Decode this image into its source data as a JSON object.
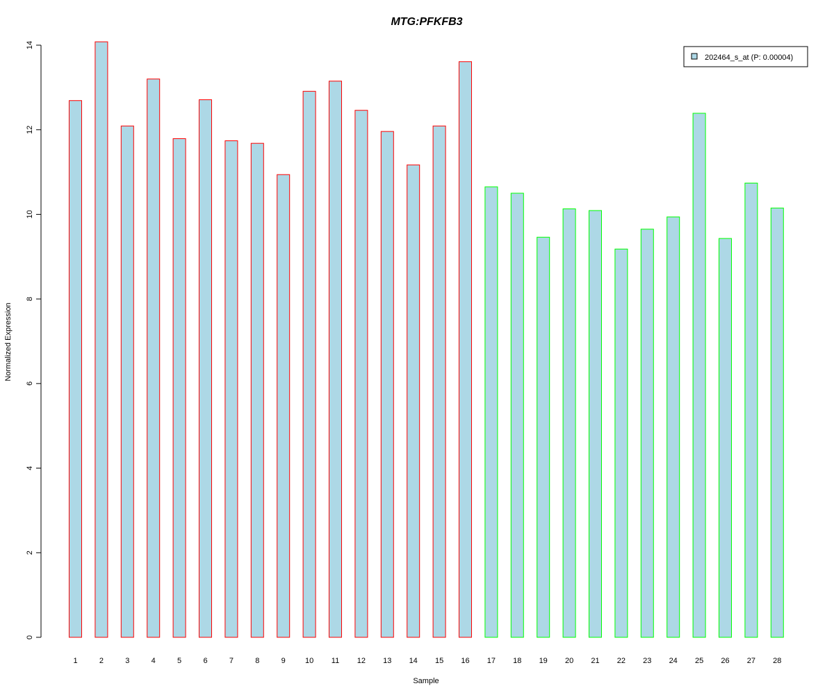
{
  "chart_data": {
    "type": "bar",
    "title": "MTG:PFKFB3",
    "title_color": "#0000CC",
    "xlabel": "Sample",
    "ylabel": "Normalized Expression",
    "ylim": [
      0,
      14
    ],
    "yticks": [
      0,
      2,
      4,
      6,
      8,
      10,
      12,
      14
    ],
    "grid": false,
    "legend_position": "top-right",
    "legend": [
      {
        "label": "202464_s_at (P: 0.00004)",
        "fill": "#ADD8E6"
      }
    ],
    "bar_fill": "#ADD8E6",
    "categories": [
      "1",
      "2",
      "3",
      "4",
      "5",
      "6",
      "7",
      "8",
      "9",
      "10",
      "11",
      "12",
      "13",
      "14",
      "15",
      "16",
      "17",
      "18",
      "19",
      "20",
      "21",
      "22",
      "23",
      "24",
      "25",
      "26",
      "27",
      "28"
    ],
    "series": [
      {
        "name": "202464_s_at (P: 0.00004)",
        "values": [
          12.69,
          14.08,
          12.09,
          13.2,
          11.79,
          12.71,
          11.74,
          11.68,
          10.94,
          12.91,
          13.15,
          12.46,
          11.96,
          11.17,
          12.09,
          13.61,
          10.65,
          10.5,
          9.46,
          10.13,
          10.09,
          9.18,
          9.65,
          9.94,
          12.39,
          9.43,
          10.74,
          10.15
        ]
      }
    ],
    "groups": [
      {
        "samples": [
          "1",
          "2",
          "3",
          "4",
          "5",
          "6",
          "7",
          "8",
          "9",
          "10",
          "11",
          "12",
          "13",
          "14",
          "15",
          "16"
        ],
        "border_color": "#FF0000"
      },
      {
        "samples": [
          "17",
          "18",
          "19",
          "20",
          "21",
          "22",
          "23",
          "24",
          "25",
          "26",
          "27",
          "28"
        ],
        "border_color": "#00FF00"
      }
    ]
  }
}
